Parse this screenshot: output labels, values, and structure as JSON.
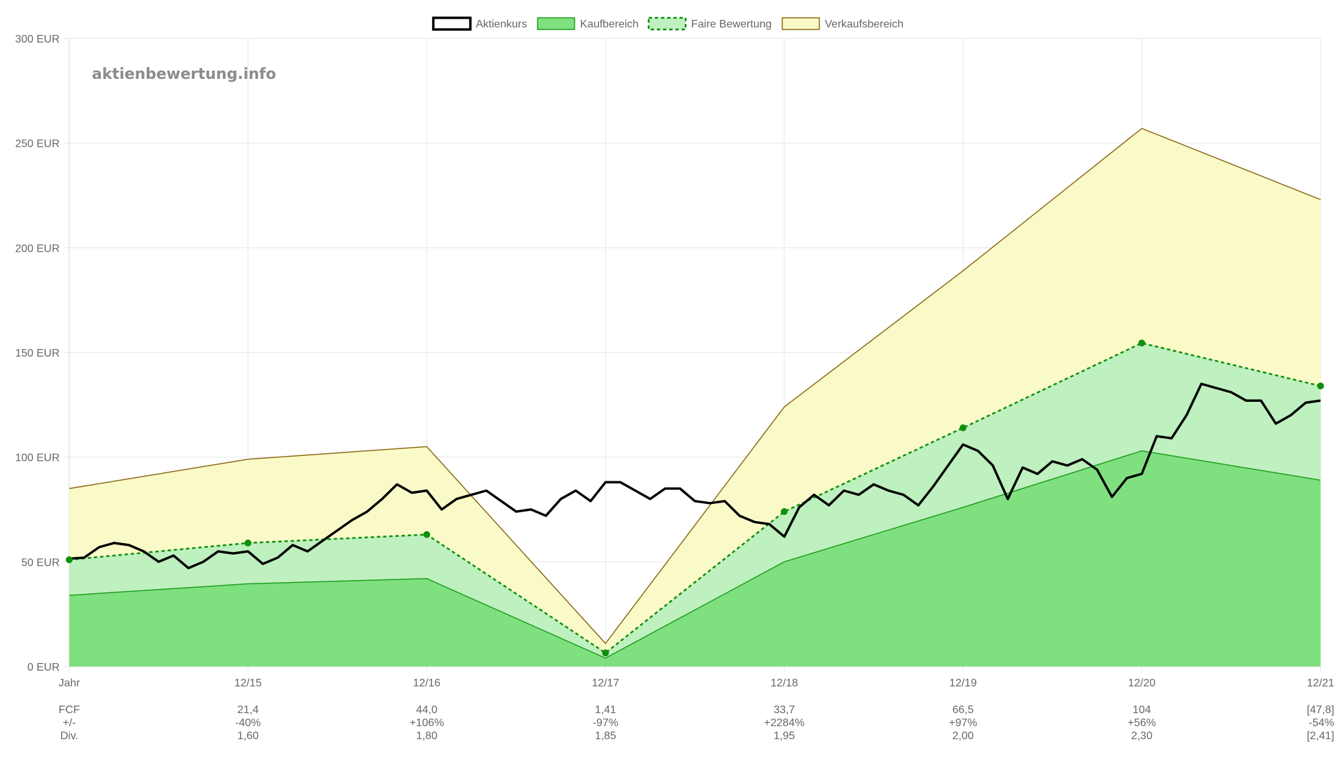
{
  "chart_data": {
    "type": "area",
    "watermark": "aktienbewertung.info",
    "ylim": [
      0,
      300
    ],
    "yticks": [
      "0 EUR",
      "50 EUR",
      "100 EUR",
      "150 EUR",
      "200 EUR",
      "250 EUR",
      "300 EUR"
    ],
    "ytick_values": [
      0,
      50,
      100,
      150,
      200,
      250,
      300
    ],
    "x_range": [
      2014,
      2021
    ],
    "xticks": [
      "Jahr",
      "12/15",
      "12/16",
      "12/17",
      "12/18",
      "12/19",
      "12/20",
      "12/21"
    ],
    "legend": {
      "placement": "top",
      "entries": [
        "Aktienkurs",
        "Kaufbereich",
        "Faire Bewertung",
        "Verkaufsbereich"
      ]
    },
    "colors": {
      "aktienkurs": "#000000",
      "kauf_fill": "#7fe07f",
      "kauf_line": "#1e9e1e",
      "fair_fill": "#bff0bf",
      "fair_line": "#0f8f0f",
      "verkauf_fill": "#fafac8",
      "verkauf_line": "#8b6914",
      "grid": "#e6e6e6"
    },
    "series": [
      {
        "name": "Verkaufsbereich",
        "x": [
          2014,
          2015,
          2016,
          2017,
          2018,
          2019,
          2020,
          2021
        ],
        "values": [
          85,
          99,
          105,
          11,
          124,
          189,
          257,
          223
        ]
      },
      {
        "name": "Faire Bewertung",
        "x": [
          2014,
          2015,
          2016,
          2017,
          2018,
          2019,
          2020,
          2021
        ],
        "values": [
          51,
          59,
          63,
          6.5,
          74,
          114,
          154.5,
          134
        ]
      },
      {
        "name": "Kaufbereich",
        "x": [
          2014,
          2015,
          2016,
          2017,
          2018,
          2019,
          2020,
          2021
        ],
        "values": [
          34,
          39.5,
          42,
          4,
          50,
          76,
          103,
          89
        ]
      },
      {
        "name": "Aktienkurs",
        "x_start": 2014,
        "x_end": 2021,
        "values": [
          51.5,
          52,
          57,
          59,
          58,
          55,
          50,
          53,
          47,
          50,
          55,
          54,
          55,
          49,
          52,
          58,
          55,
          60,
          65,
          70,
          74,
          80,
          87,
          83,
          84,
          75,
          80,
          82,
          84,
          79,
          74,
          75,
          72,
          80,
          84,
          79,
          88,
          88,
          84,
          80,
          85,
          85,
          79,
          78,
          79,
          72,
          69,
          68,
          62,
          76,
          82,
          77,
          84,
          82,
          87,
          84,
          82,
          77,
          86,
          96,
          106,
          103,
          96,
          80,
          95,
          92,
          98,
          96,
          99,
          94,
          81,
          90,
          92,
          110,
          109,
          120,
          135,
          133,
          131,
          127,
          127,
          116,
          120,
          126,
          127
        ]
      }
    ],
    "table": {
      "rows": [
        {
          "label": "FCF",
          "values": [
            "21,4",
            "44,0",
            "1,41",
            "33,7",
            "66,5",
            "104",
            "[47,8]"
          ]
        },
        {
          "label": "+/-",
          "values": [
            "-40%",
            "+106%",
            "-97%",
            "+2284%",
            "+97%",
            "+56%",
            "-54%"
          ]
        },
        {
          "label": "Div.",
          "values": [
            "1,60",
            "1,80",
            "1,85",
            "1,95",
            "2,00",
            "2,30",
            "[2,41]"
          ]
        }
      ]
    }
  }
}
